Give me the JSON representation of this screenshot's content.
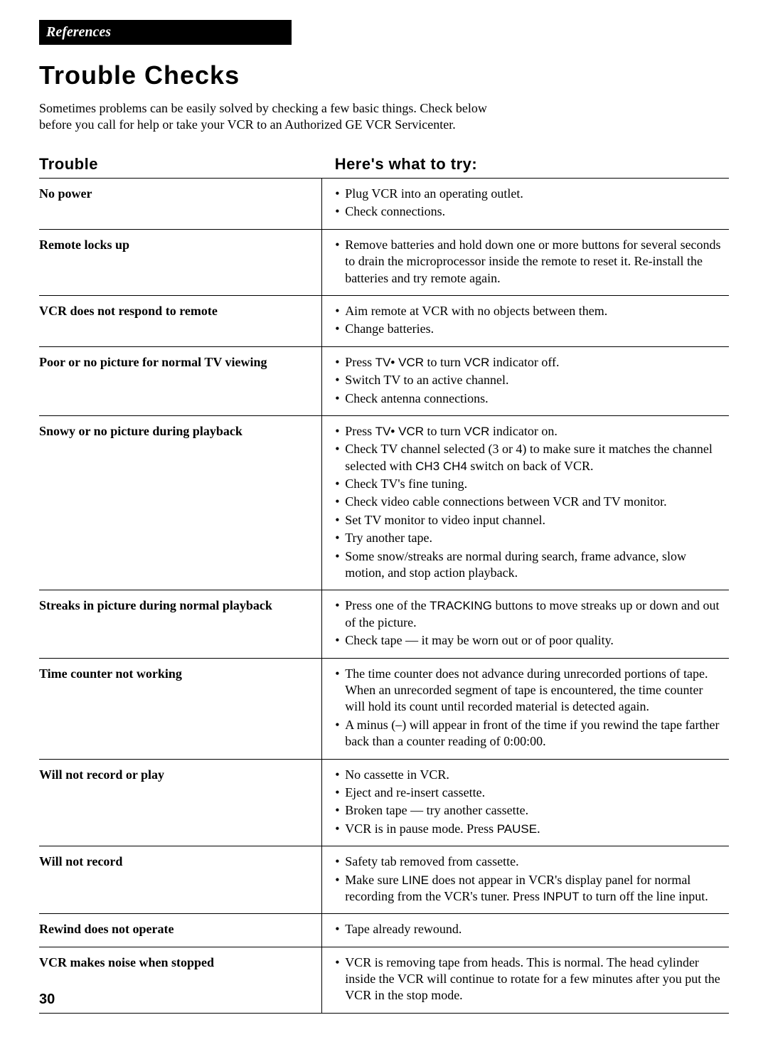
{
  "section_tab": "References",
  "title": "Trouble Checks",
  "intro_line1": "Sometimes problems can be easily solved by checking a few basic things.  Check  below",
  "intro_line2": "before you call for help or take your VCR to an Authorized GE VCR Servicenter.",
  "headers": {
    "trouble": "Trouble",
    "fix": "Here's what to try:"
  },
  "page_number": "30",
  "rows": [
    {
      "trouble": "No power",
      "fixes": [
        [
          {
            "t": "Plug VCR into an operating outlet."
          }
        ],
        [
          {
            "t": "Check connections."
          }
        ]
      ]
    },
    {
      "trouble": "Remote locks up",
      "fixes": [
        [
          {
            "t": "Remove batteries and hold down one or more buttons for several seconds to drain the microprocessor inside the remote to reset it.  Re-install the batteries and try remote again."
          }
        ]
      ]
    },
    {
      "trouble": "VCR does not respond to remote",
      "fixes": [
        [
          {
            "t": "Aim remote at VCR with no objects between them."
          }
        ],
        [
          {
            "t": "Change batteries."
          }
        ]
      ]
    },
    {
      "trouble": "Poor or no picture for normal TV viewing",
      "fixes": [
        [
          {
            "t": "Press "
          },
          {
            "t": "TV• VCR",
            "sans": true
          },
          {
            "t": " to turn "
          },
          {
            "t": "VCR",
            "sans": true
          },
          {
            "t": " indicator off."
          }
        ],
        [
          {
            "t": "Switch TV to an active channel."
          }
        ],
        [
          {
            "t": "Check antenna connections."
          }
        ]
      ]
    },
    {
      "trouble": "Snowy or no picture during playback",
      "fixes": [
        [
          {
            "t": "Press "
          },
          {
            "t": "TV• VCR",
            "sans": true
          },
          {
            "t": " to turn "
          },
          {
            "t": "VCR",
            "sans": true
          },
          {
            "t": " indicator on."
          }
        ],
        [
          {
            "t": "Check TV channel selected (3 or 4) to make sure it matches the channel selected with "
          },
          {
            "t": "CH3 CH4",
            "sans": true
          },
          {
            "t": " switch on back of VCR."
          }
        ],
        [
          {
            "t": "Check TV's fine tuning."
          }
        ],
        [
          {
            "t": "Check video cable connections between VCR and TV monitor."
          }
        ],
        [
          {
            "t": "Set TV monitor to video input channel."
          }
        ],
        [
          {
            "t": "Try another tape."
          }
        ],
        [
          {
            "t": "Some snow/streaks are normal during search, frame advance, slow motion, and stop action playback."
          }
        ]
      ]
    },
    {
      "trouble": "Streaks in picture during normal playback",
      "fixes": [
        [
          {
            "t": "Press one of the "
          },
          {
            "t": "TRACKING",
            "sans": true
          },
          {
            "t": " buttons to move streaks up or down and out of the picture."
          }
        ],
        [
          {
            "t": "Check tape — it may be worn out or of poor quality."
          }
        ]
      ]
    },
    {
      "trouble": "Time counter not working",
      "fixes": [
        [
          {
            "t": "The time counter does not advance during unrecorded portions of tape. When an unrecorded segment of tape is encountered, the time counter will hold its count until recorded material is detected again."
          }
        ],
        [
          {
            "t": "A minus (–) will appear in front of the time if you rewind the tape farther back than a counter reading of 0:00:00."
          }
        ]
      ]
    },
    {
      "trouble": "Will not record or play",
      "fixes": [
        [
          {
            "t": "No cassette in VCR."
          }
        ],
        [
          {
            "t": "Eject and re-insert cassette."
          }
        ],
        [
          {
            "t": "Broken tape — try another cassette."
          }
        ],
        [
          {
            "t": "VCR is in pause mode.  Press "
          },
          {
            "t": "PAUSE",
            "sans": true
          },
          {
            "t": "."
          }
        ]
      ]
    },
    {
      "trouble": "Will not record",
      "fixes": [
        [
          {
            "t": "Safety tab removed from cassette."
          }
        ],
        [
          {
            "t": "Make sure "
          },
          {
            "t": "LINE",
            "sans": true
          },
          {
            "t": " does not appear in VCR's display panel for normal recording from the VCR's tuner.  Press "
          },
          {
            "t": "INPUT",
            "sans": true
          },
          {
            "t": " to turn off the line input."
          }
        ]
      ]
    },
    {
      "trouble": "Rewind does not operate",
      "fixes": [
        [
          {
            "t": "Tape already rewound."
          }
        ]
      ]
    },
    {
      "trouble": "VCR makes noise when stopped",
      "fixes": [
        [
          {
            "t": "VCR is removing tape from heads.  This is normal.  The head cylinder inside the VCR will continue to rotate for a few minutes after you put the VCR in the stop mode."
          }
        ]
      ]
    }
  ]
}
